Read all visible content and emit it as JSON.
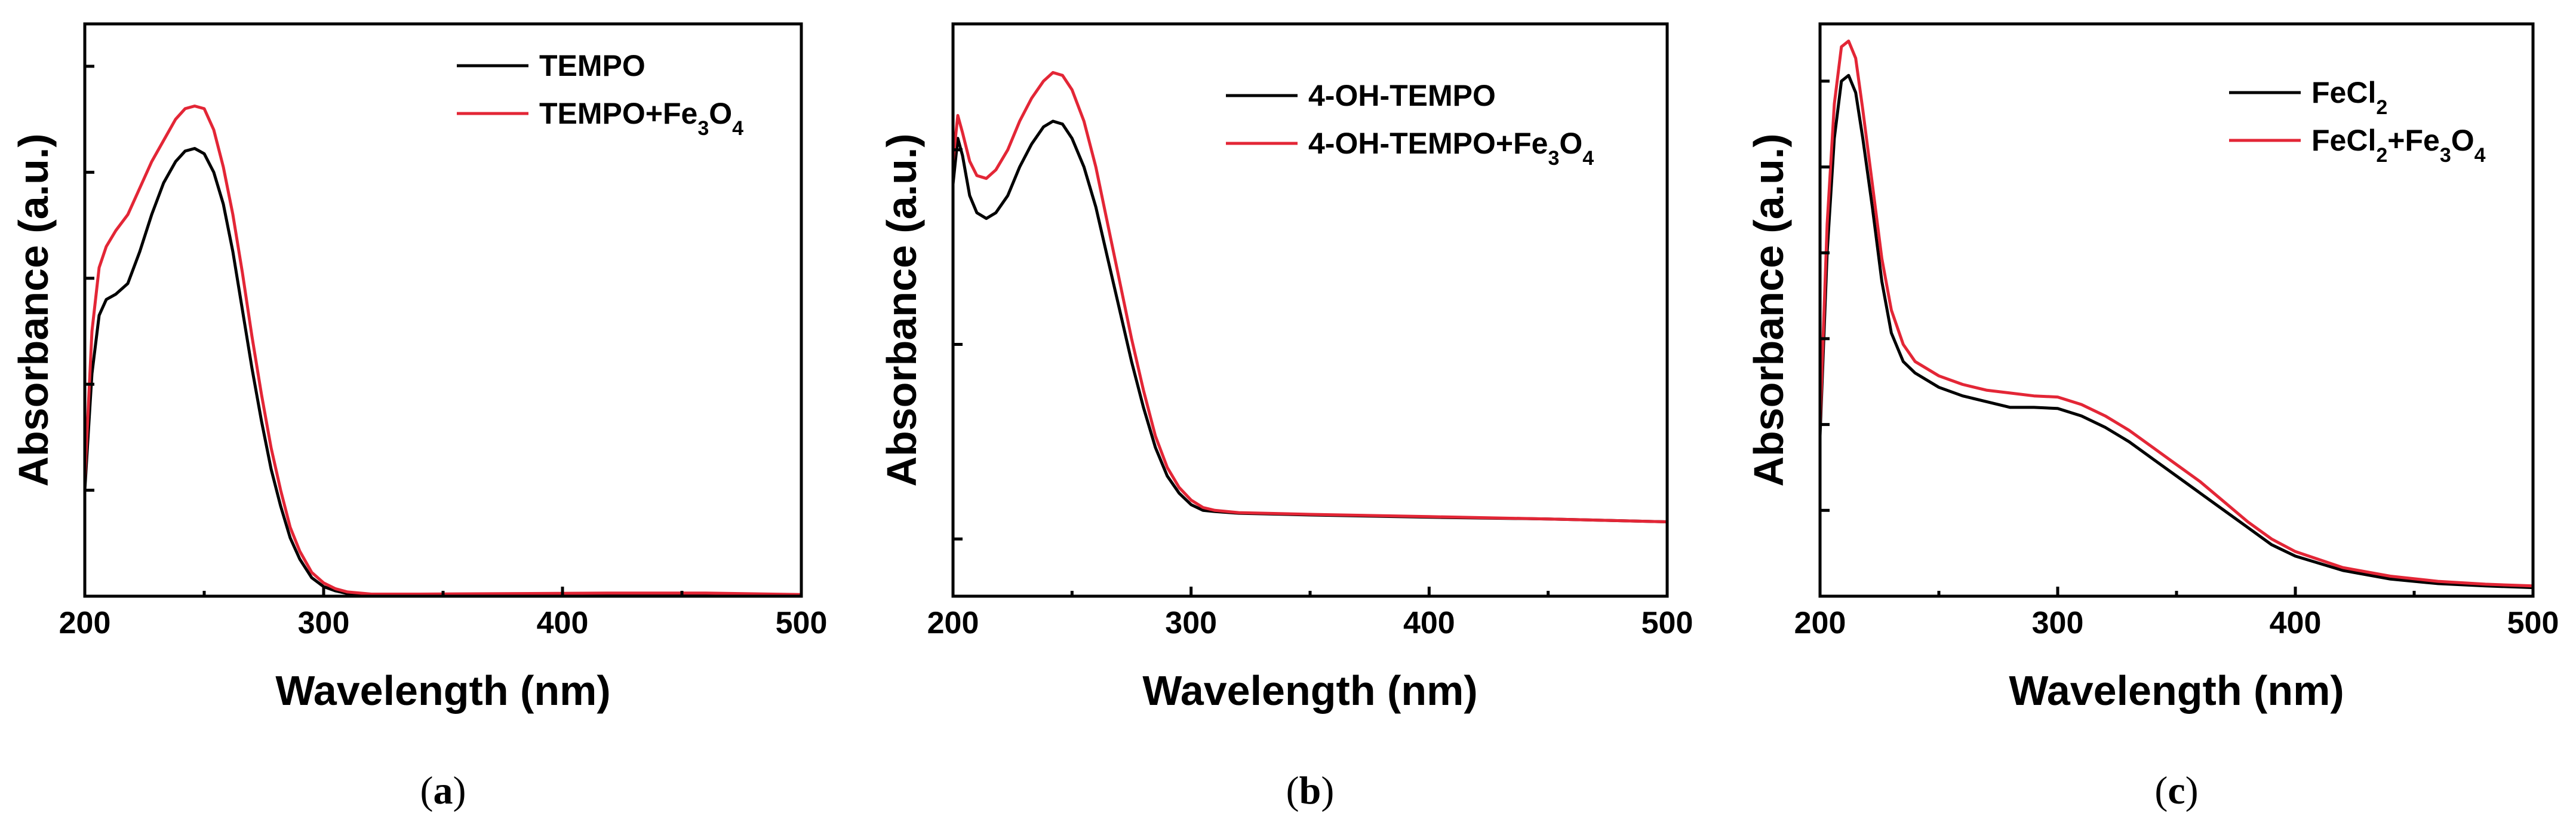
{
  "chart_data": [
    {
      "type": "line",
      "panel_label": "a",
      "xlabel": "Wavelength (nm)",
      "ylabel": "Absorbance (a.u.)",
      "xlim": [
        200,
        500
      ],
      "ylim": [
        0,
        1.08
      ],
      "x_ticks": [
        200,
        300,
        400,
        500
      ],
      "y_tick_values": [
        0.2,
        0.4,
        0.6,
        0.8,
        1.0
      ],
      "y_tick_labels_shown": false,
      "legend_position": "top-right",
      "series": [
        {
          "name": "TEMPO",
          "legend": {
            "text": "TEMPO",
            "sub": "",
            "text2": "",
            "sub2": ""
          },
          "color": "#000000",
          "points": [
            [
              200,
              0.2
            ],
            [
              203,
              0.42
            ],
            [
              206,
              0.53
            ],
            [
              209,
              0.56
            ],
            [
              213,
              0.57
            ],
            [
              218,
              0.59
            ],
            [
              223,
              0.65
            ],
            [
              228,
              0.72
            ],
            [
              233,
              0.78
            ],
            [
              238,
              0.82
            ],
            [
              242,
              0.84
            ],
            [
              246,
              0.845
            ],
            [
              250,
              0.835
            ],
            [
              254,
              0.8
            ],
            [
              258,
              0.74
            ],
            [
              262,
              0.65
            ],
            [
              266,
              0.54
            ],
            [
              270,
              0.43
            ],
            [
              274,
              0.33
            ],
            [
              278,
              0.24
            ],
            [
              282,
              0.17
            ],
            [
              286,
              0.11
            ],
            [
              290,
              0.07
            ],
            [
              295,
              0.035
            ],
            [
              300,
              0.018
            ],
            [
              305,
              0.01
            ],
            [
              310,
              0.005
            ],
            [
              320,
              0.002
            ],
            [
              340,
              0.002
            ],
            [
              380,
              0.003
            ],
            [
              420,
              0.004
            ],
            [
              460,
              0.004
            ],
            [
              500,
              0.002
            ]
          ]
        },
        {
          "name": "TEMPO+Fe3O4",
          "legend": {
            "text": "TEMPO+Fe",
            "sub": "3",
            "text2": "O",
            "sub2": "4"
          },
          "color": "#e32636",
          "points": [
            [
              200,
              0.22
            ],
            [
              203,
              0.5
            ],
            [
              206,
              0.62
            ],
            [
              209,
              0.66
            ],
            [
              213,
              0.69
            ],
            [
              218,
              0.72
            ],
            [
              223,
              0.77
            ],
            [
              228,
              0.82
            ],
            [
              233,
              0.86
            ],
            [
              238,
              0.9
            ],
            [
              242,
              0.92
            ],
            [
              246,
              0.925
            ],
            [
              250,
              0.92
            ],
            [
              254,
              0.88
            ],
            [
              258,
              0.81
            ],
            [
              262,
              0.72
            ],
            [
              266,
              0.61
            ],
            [
              270,
              0.49
            ],
            [
              274,
              0.38
            ],
            [
              278,
              0.28
            ],
            [
              282,
              0.2
            ],
            [
              286,
              0.13
            ],
            [
              290,
              0.085
            ],
            [
              295,
              0.045
            ],
            [
              300,
              0.025
            ],
            [
              305,
              0.014
            ],
            [
              310,
              0.008
            ],
            [
              320,
              0.004
            ],
            [
              340,
              0.004
            ],
            [
              380,
              0.005
            ],
            [
              420,
              0.006
            ],
            [
              460,
              0.006
            ],
            [
              500,
              0.003
            ]
          ]
        }
      ]
    },
    {
      "type": "line",
      "panel_label": "b",
      "xlabel": "Wavelength (nm)",
      "ylabel": "Absorbance (a.u.)",
      "xlim": [
        200,
        500
      ],
      "ylim": [
        0,
        1.0
      ],
      "x_ticks": [
        200,
        300,
        400,
        500
      ],
      "y_tick_values": [
        0.1,
        0.44,
        0.78
      ],
      "y_tick_labels_shown": false,
      "legend_position": "top-right",
      "series": [
        {
          "name": "4-OH-TEMPO",
          "legend": {
            "text": "4-OH-TEMPO",
            "sub": "",
            "text2": "",
            "sub2": ""
          },
          "color": "#000000",
          "points": [
            [
              200,
              0.72
            ],
            [
              202,
              0.8
            ],
            [
              204,
              0.77
            ],
            [
              207,
              0.7
            ],
            [
              210,
              0.67
            ],
            [
              214,
              0.66
            ],
            [
              218,
              0.67
            ],
            [
              223,
              0.7
            ],
            [
              228,
              0.75
            ],
            [
              233,
              0.79
            ],
            [
              238,
              0.82
            ],
            [
              242,
              0.83
            ],
            [
              246,
              0.825
            ],
            [
              250,
              0.8
            ],
            [
              255,
              0.75
            ],
            [
              260,
              0.68
            ],
            [
              265,
              0.59
            ],
            [
              270,
              0.5
            ],
            [
              275,
              0.41
            ],
            [
              280,
              0.33
            ],
            [
              285,
              0.26
            ],
            [
              290,
              0.21
            ],
            [
              295,
              0.18
            ],
            [
              300,
              0.16
            ],
            [
              305,
              0.15
            ],
            [
              310,
              0.148
            ],
            [
              320,
              0.145
            ],
            [
              350,
              0.142
            ],
            [
              400,
              0.138
            ],
            [
              450,
              0.135
            ],
            [
              500,
              0.13
            ]
          ]
        },
        {
          "name": "4-OH-TEMPO+Fe3O4",
          "legend": {
            "text": "4-OH-TEMPO+Fe",
            "sub": "3",
            "text2": "O",
            "sub2": "4"
          },
          "color": "#e32636",
          "points": [
            [
              200,
              0.76
            ],
            [
              202,
              0.84
            ],
            [
              204,
              0.81
            ],
            [
              207,
              0.76
            ],
            [
              210,
              0.735
            ],
            [
              214,
              0.73
            ],
            [
              218,
              0.745
            ],
            [
              223,
              0.78
            ],
            [
              228,
              0.83
            ],
            [
              233,
              0.87
            ],
            [
              238,
              0.9
            ],
            [
              242,
              0.915
            ],
            [
              246,
              0.91
            ],
            [
              250,
              0.885
            ],
            [
              255,
              0.83
            ],
            [
              260,
              0.75
            ],
            [
              265,
              0.65
            ],
            [
              270,
              0.55
            ],
            [
              275,
              0.45
            ],
            [
              280,
              0.36
            ],
            [
              285,
              0.28
            ],
            [
              290,
              0.225
            ],
            [
              295,
              0.19
            ],
            [
              300,
              0.168
            ],
            [
              305,
              0.155
            ],
            [
              310,
              0.15
            ],
            [
              320,
              0.146
            ],
            [
              350,
              0.143
            ],
            [
              400,
              0.139
            ],
            [
              450,
              0.135
            ],
            [
              500,
              0.13
            ]
          ]
        }
      ]
    },
    {
      "type": "line",
      "panel_label": "c",
      "xlabel": "Wavelength (nm)",
      "ylabel": "Absorbance (a.u.)",
      "xlim": [
        200,
        500
      ],
      "ylim": [
        0,
        1.0
      ],
      "x_ticks": [
        200,
        300,
        400,
        500
      ],
      "y_tick_values": [
        0.15,
        0.3,
        0.45,
        0.6,
        0.75,
        0.9
      ],
      "y_tick_labels_shown": false,
      "legend_position": "top-right",
      "series": [
        {
          "name": "FeCl2",
          "legend": {
            "text": "FeCl",
            "sub": "2",
            "text2": "",
            "sub2": ""
          },
          "color": "#000000",
          "points": [
            [
              200,
              0.28
            ],
            [
              203,
              0.6
            ],
            [
              206,
              0.8
            ],
            [
              209,
              0.9
            ],
            [
              212,
              0.91
            ],
            [
              215,
              0.88
            ],
            [
              218,
              0.8
            ],
            [
              222,
              0.68
            ],
            [
              226,
              0.55
            ],
            [
              230,
              0.46
            ],
            [
              235,
              0.41
            ],
            [
              240,
              0.39
            ],
            [
              250,
              0.365
            ],
            [
              260,
              0.35
            ],
            [
              270,
              0.34
            ],
            [
              280,
              0.33
            ],
            [
              290,
              0.33
            ],
            [
              300,
              0.328
            ],
            [
              310,
              0.315
            ],
            [
              320,
              0.295
            ],
            [
              330,
              0.27
            ],
            [
              340,
              0.24
            ],
            [
              350,
              0.21
            ],
            [
              360,
              0.18
            ],
            [
              370,
              0.15
            ],
            [
              380,
              0.12
            ],
            [
              390,
              0.09
            ],
            [
              400,
              0.07
            ],
            [
              420,
              0.045
            ],
            [
              440,
              0.03
            ],
            [
              460,
              0.022
            ],
            [
              480,
              0.018
            ],
            [
              500,
              0.015
            ]
          ]
        },
        {
          "name": "FeCl2+Fe3O4",
          "legend": {
            "text": "FeCl",
            "sub": "2",
            "text2": "+Fe",
            "sub2": "3",
            "text3": "O",
            "sub3": "4"
          },
          "color": "#e32636",
          "points": [
            [
              200,
              0.3
            ],
            [
              203,
              0.65
            ],
            [
              206,
              0.86
            ],
            [
              209,
              0.96
            ],
            [
              212,
              0.97
            ],
            [
              215,
              0.94
            ],
            [
              218,
              0.85
            ],
            [
              222,
              0.72
            ],
            [
              226,
              0.59
            ],
            [
              230,
              0.5
            ],
            [
              235,
              0.44
            ],
            [
              240,
              0.41
            ],
            [
              250,
              0.385
            ],
            [
              260,
              0.37
            ],
            [
              270,
              0.36
            ],
            [
              280,
              0.355
            ],
            [
              290,
              0.35
            ],
            [
              300,
              0.348
            ],
            [
              310,
              0.335
            ],
            [
              320,
              0.315
            ],
            [
              330,
              0.29
            ],
            [
              340,
              0.26
            ],
            [
              350,
              0.23
            ],
            [
              360,
              0.2
            ],
            [
              370,
              0.165
            ],
            [
              380,
              0.13
            ],
            [
              390,
              0.1
            ],
            [
              400,
              0.078
            ],
            [
              420,
              0.05
            ],
            [
              440,
              0.035
            ],
            [
              460,
              0.026
            ],
            [
              480,
              0.021
            ],
            [
              500,
              0.018
            ]
          ]
        }
      ]
    }
  ]
}
